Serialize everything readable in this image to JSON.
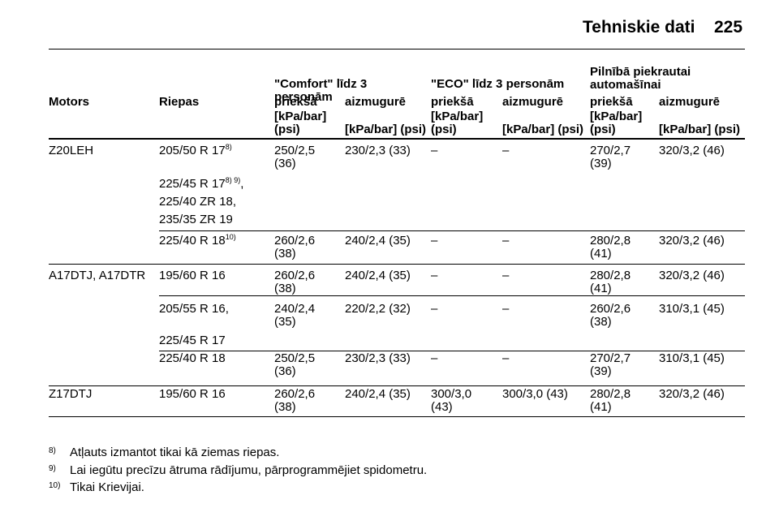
{
  "header": {
    "title": "Tehniskie dati",
    "page": "225"
  },
  "table": {
    "groups": [
      "\"Comfort\" līdz 3 personām",
      "\"ECO\" līdz 3 personām",
      "Pilnībā piekrautai automašīnai"
    ],
    "columns": [
      "Motors",
      "Riepas",
      "priekšā",
      "aizmugurē",
      "priekšā",
      "aizmugurē",
      "priekšā",
      "aizmugurē"
    ],
    "units": [
      "[kPa/bar] (psi)",
      "[kPa/bar] (psi)",
      "[kPa/bar] (psi)",
      "[kPa/bar] (psi)",
      "[kPa/bar] (psi)",
      "[kPa/bar] (psi)"
    ],
    "rows": [
      {
        "motor": "Z20LEH",
        "tyres": [
          {
            "text": "205/50 R 17",
            "sup": "8)"
          },
          {
            "text": "225/45 R 17",
            "sup": "8) 9)",
            "suffix": ","
          },
          {
            "text": "225/40 ZR 18,"
          },
          {
            "text": "235/35 ZR 19"
          }
        ],
        "cells": [
          "250/2,5 (36)",
          "230/2,3 (33)",
          "–",
          "–",
          "270/2,7 (39)",
          "320/3,2 (46)"
        ]
      },
      {
        "motor": null,
        "tyres": [
          {
            "text": "225/40 R 18",
            "sup": "10)"
          }
        ],
        "cells": [
          "260/2,6 (38)",
          "240/2,4 (35)",
          "–",
          "–",
          "280/2,8 (41)",
          "320/3,2 (46)"
        ]
      },
      {
        "motor": "A17DTJ, A17DTR",
        "tyres": [
          {
            "text": "195/60 R 16"
          }
        ],
        "cells": [
          "260/2,6 (38)",
          "240/2,4 (35)",
          "–",
          "–",
          "280/2,8 (41)",
          "320/3,2 (46)"
        ]
      },
      {
        "motor": null,
        "tyres": [
          {
            "text": "205/55 R 16,"
          },
          {
            "text": "225/45 R 17"
          }
        ],
        "cells": [
          "240/2,4 (35)",
          "220/2,2 (32)",
          "–",
          "–",
          "260/2,6 (38)",
          "310/3,1 (45)"
        ]
      },
      {
        "motor": null,
        "tyres": [
          {
            "text": "225/40 R 18"
          }
        ],
        "cells": [
          "250/2,5 (36)",
          "230/2,3 (33)",
          "–",
          "–",
          "270/2,7 (39)",
          "310/3,1 (45)"
        ]
      },
      {
        "motor": "Z17DTJ",
        "tyres": [
          {
            "text": "195/60 R 16"
          }
        ],
        "cells": [
          "260/2,6 (38)",
          "240/2,4 (35)",
          "300/3,0 (43)",
          "300/3,0 (43)",
          "280/2,8 (41)",
          "320/3,2 (46)"
        ]
      }
    ]
  },
  "footnotes": [
    {
      "mark": "8)",
      "text": "Atļauts izmantot tikai kā ziemas riepas."
    },
    {
      "mark": "9)",
      "text": "Lai iegūtu precīzu ātruma rādījumu, pārprogrammējiet spidometru."
    },
    {
      "mark": "10)",
      "text": "Tikai Krievijai."
    }
  ]
}
